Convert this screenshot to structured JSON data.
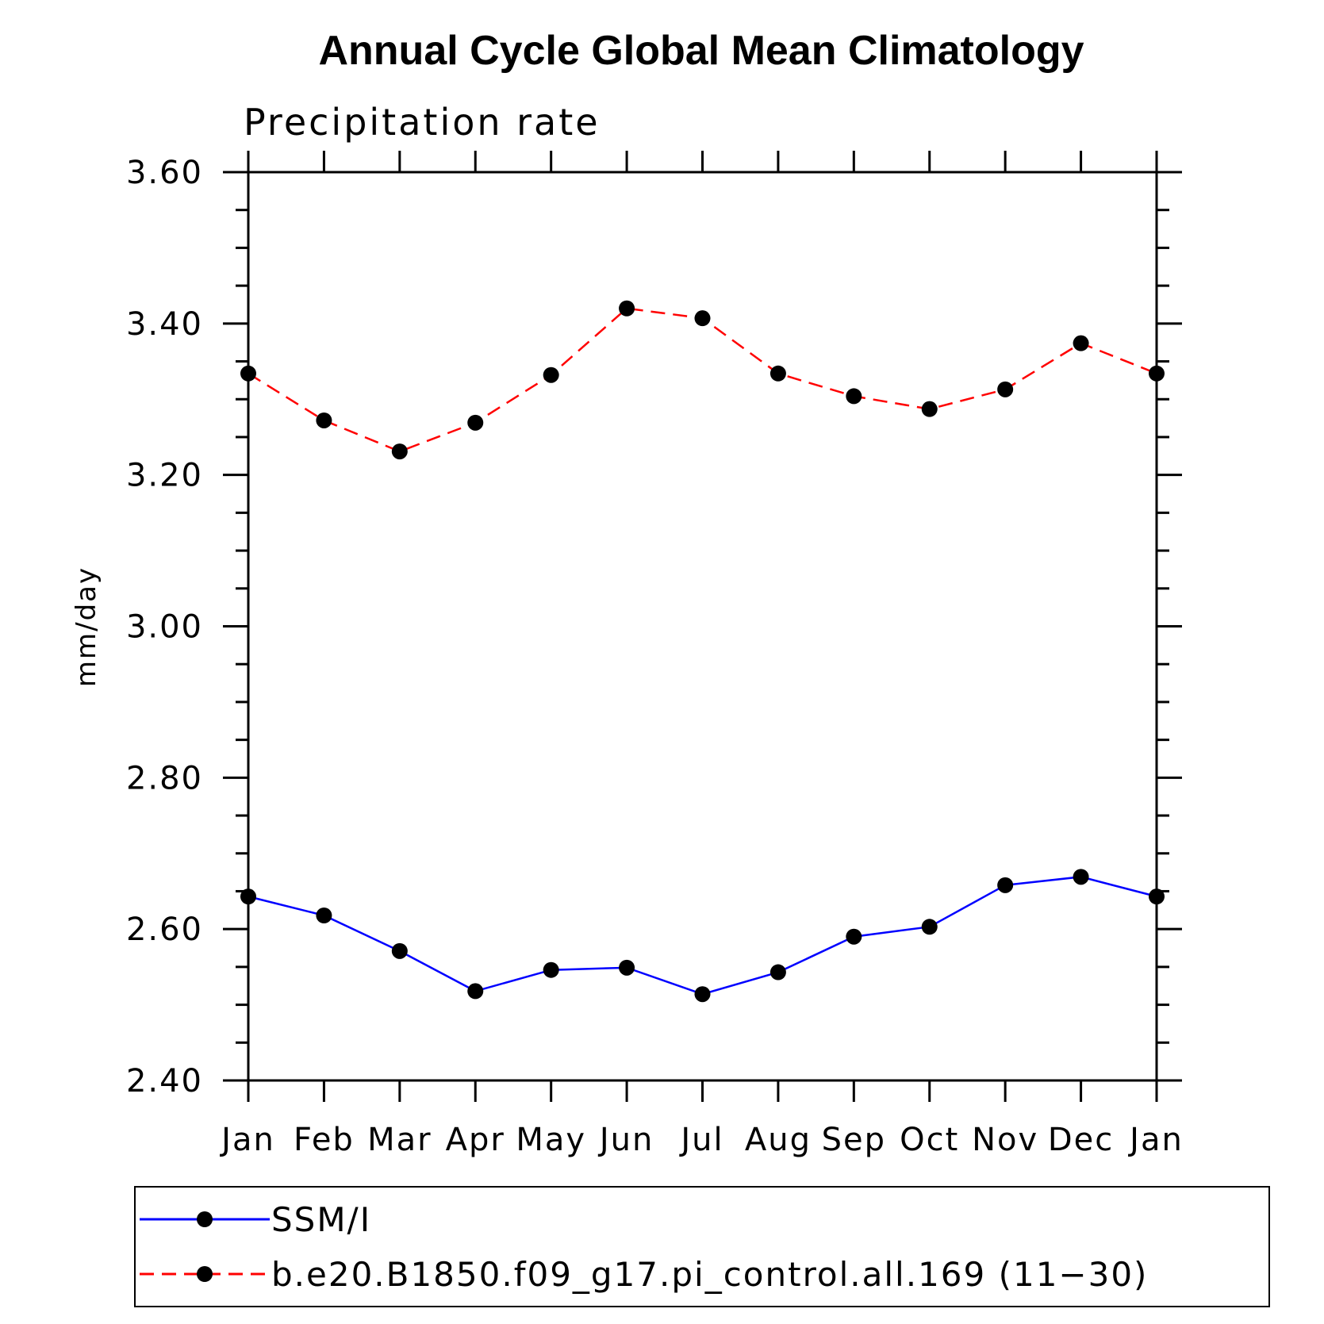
{
  "chart_data": {
    "type": "line",
    "title": "Annual Cycle Global Mean Climatology",
    "subtitle": "Precipitation rate",
    "xlabel": "",
    "ylabel": "mm/day",
    "categories": [
      "Jan",
      "Feb",
      "Mar",
      "Apr",
      "May",
      "Jun",
      "Jul",
      "Aug",
      "Sep",
      "Oct",
      "Nov",
      "Dec",
      "Jan"
    ],
    "ylim": [
      2.4,
      3.6
    ],
    "y_ticks": [
      "2.40",
      "2.60",
      "2.80",
      "3.00",
      "3.20",
      "3.40",
      "3.60"
    ],
    "grid": false,
    "legend_position": "bottom",
    "series": [
      {
        "name": "SSM/I",
        "color": "#0000ff",
        "line_style": "solid",
        "marker": "filled-circle",
        "values": [
          2.643,
          2.618,
          2.571,
          2.518,
          2.546,
          2.549,
          2.514,
          2.543,
          2.59,
          2.603,
          2.658,
          2.669,
          2.643
        ]
      },
      {
        "name": "b.e20.B1850.f09_g17.pi_control.all.169 (11−30)",
        "color": "#ff0000",
        "line_style": "dashed",
        "marker": "filled-circle",
        "values": [
          3.334,
          3.272,
          3.231,
          3.269,
          3.332,
          3.42,
          3.407,
          3.334,
          3.304,
          3.287,
          3.313,
          3.374,
          3.334
        ]
      }
    ]
  }
}
